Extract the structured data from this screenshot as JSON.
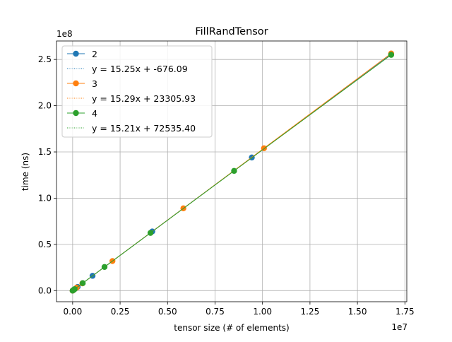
{
  "chart_data": {
    "type": "line",
    "title": "FillRandTensor",
    "xlabel": "tensor size (# of elements)",
    "ylabel": "time (ns)",
    "x_offset_label": "1e7",
    "y_offset_label": "1e8",
    "xlim": [
      -850000,
      17600000
    ],
    "ylim": [
      -12000000,
      270000000
    ],
    "x_ticks": [
      0,
      2500000,
      5000000,
      7500000,
      10000000,
      12500000,
      15000000,
      17500000
    ],
    "x_tick_labels": [
      "0.00",
      "0.25",
      "0.50",
      "0.75",
      "1.00",
      "1.25",
      "1.50",
      "1.75"
    ],
    "y_ticks": [
      0,
      50000000,
      100000000,
      150000000,
      200000000,
      250000000
    ],
    "y_tick_labels": [
      "0.0",
      "0.5",
      "1.0",
      "1.5",
      "2.0",
      "2.5"
    ],
    "grid": true,
    "legend_position": "top-left",
    "colors": {
      "2": "#1f77b4",
      "3": "#ff7f0e",
      "4": "#2ca02c"
    },
    "series": [
      {
        "name": "2",
        "fit_label": "y = 15.25x + -676.09",
        "x": [
          0,
          16384,
          65536,
          262144,
          524288,
          1048576,
          4194304,
          9437184,
          16777216
        ],
        "y": [
          0,
          250000,
          1000000,
          4000000,
          8000000,
          16000000,
          64000000,
          144000000,
          256000000
        ]
      },
      {
        "name": "3",
        "fit_label": "y = 15.29x + 23305.93",
        "x": [
          0,
          27000,
          216000,
          512000,
          2097152,
          5832000,
          10077696,
          16777216
        ],
        "y": [
          0,
          400000,
          3300000,
          7800000,
          32000000,
          89000000,
          154000000,
          256500000
        ]
      },
      {
        "name": "4",
        "fit_label": "y = 15.21x + 72535.40",
        "x": [
          0,
          65536,
          104976,
          531441,
          1679616,
          4100625,
          8503056,
          16777216
        ],
        "y": [
          0,
          1000000,
          1600000,
          8100000,
          25600000,
          62400000,
          129500000,
          255000000
        ]
      }
    ]
  }
}
